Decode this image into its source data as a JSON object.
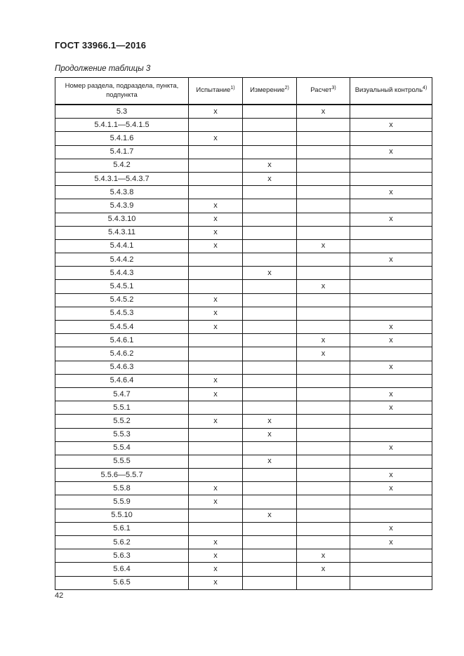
{
  "page": {
    "doc_header": "ГОСТ 33966.1—2016",
    "table_caption": "Продолжение таблицы 3",
    "page_number": "42"
  },
  "table": {
    "columns": [
      {
        "label": "Номер раздела, подраздела, пункта, подпункта",
        "sup": ""
      },
      {
        "label": "Испытание",
        "sup": "1)"
      },
      {
        "label": "Измерение",
        "sup": "2)"
      },
      {
        "label": "Расчет",
        "sup": "3)"
      },
      {
        "label": "Визуальный контроль",
        "sup": "4)"
      }
    ],
    "rows": [
      [
        "5.3",
        "х",
        "",
        "х",
        ""
      ],
      [
        "5.4.1.1—5.4.1.5",
        "",
        "",
        "",
        "х"
      ],
      [
        "5.4.1.6",
        "х",
        "",
        "",
        ""
      ],
      [
        "5.4.1.7",
        "",
        "",
        "",
        "х"
      ],
      [
        "5.4.2",
        "",
        "х",
        "",
        ""
      ],
      [
        "5.4.3.1—5.4.3.7",
        "",
        "х",
        "",
        ""
      ],
      [
        "5.4.3.8",
        "",
        "",
        "",
        "х"
      ],
      [
        "5.4.3.9",
        "х",
        "",
        "",
        ""
      ],
      [
        "5.4.3.10",
        "х",
        "",
        "",
        "х"
      ],
      [
        "5.4.3.11",
        "х",
        "",
        "",
        ""
      ],
      [
        "5.4.4.1",
        "х",
        "",
        "х",
        ""
      ],
      [
        "5.4.4.2",
        "",
        "",
        "",
        "х"
      ],
      [
        "5.4.4.3",
        "",
        "х",
        "",
        ""
      ],
      [
        "5.4.5.1",
        "",
        "",
        "х",
        ""
      ],
      [
        "5.4.5.2",
        "х",
        "",
        "",
        ""
      ],
      [
        "5.4.5.3",
        "х",
        "",
        "",
        ""
      ],
      [
        "5.4.5.4",
        "х",
        "",
        "",
        "х"
      ],
      [
        "5.4.6.1",
        "",
        "",
        "х",
        "х"
      ],
      [
        "5.4.6.2",
        "",
        "",
        "х",
        ""
      ],
      [
        "5.4.6.3",
        "",
        "",
        "",
        "х"
      ],
      [
        "5.4.6.4",
        "х",
        "",
        "",
        ""
      ],
      [
        "5.4.7",
        "х",
        "",
        "",
        "х"
      ],
      [
        "5.5.1",
        "",
        "",
        "",
        "х"
      ],
      [
        "5.5.2",
        "х",
        "х",
        "",
        ""
      ],
      [
        "5.5.3",
        "",
        "х",
        "",
        ""
      ],
      [
        "5.5.4",
        "",
        "",
        "",
        "х"
      ],
      [
        "5.5.5",
        "",
        "х",
        "",
        ""
      ],
      [
        "5.5.6—5.5.7",
        "",
        "",
        "",
        "х"
      ],
      [
        "5.5.8",
        "х",
        "",
        "",
        "х"
      ],
      [
        "5.5.9",
        "х",
        "",
        "",
        ""
      ],
      [
        "5.5.10",
        "",
        "х",
        "",
        ""
      ],
      [
        "5.6.1",
        "",
        "",
        "",
        "х"
      ],
      [
        "5.6.2",
        "х",
        "",
        "",
        "х"
      ],
      [
        "5.6.3",
        "х",
        "",
        "х",
        ""
      ],
      [
        "5.6.4",
        "х",
        "",
        "х",
        ""
      ],
      [
        "5.6.5",
        "х",
        "",
        "",
        ""
      ]
    ]
  }
}
